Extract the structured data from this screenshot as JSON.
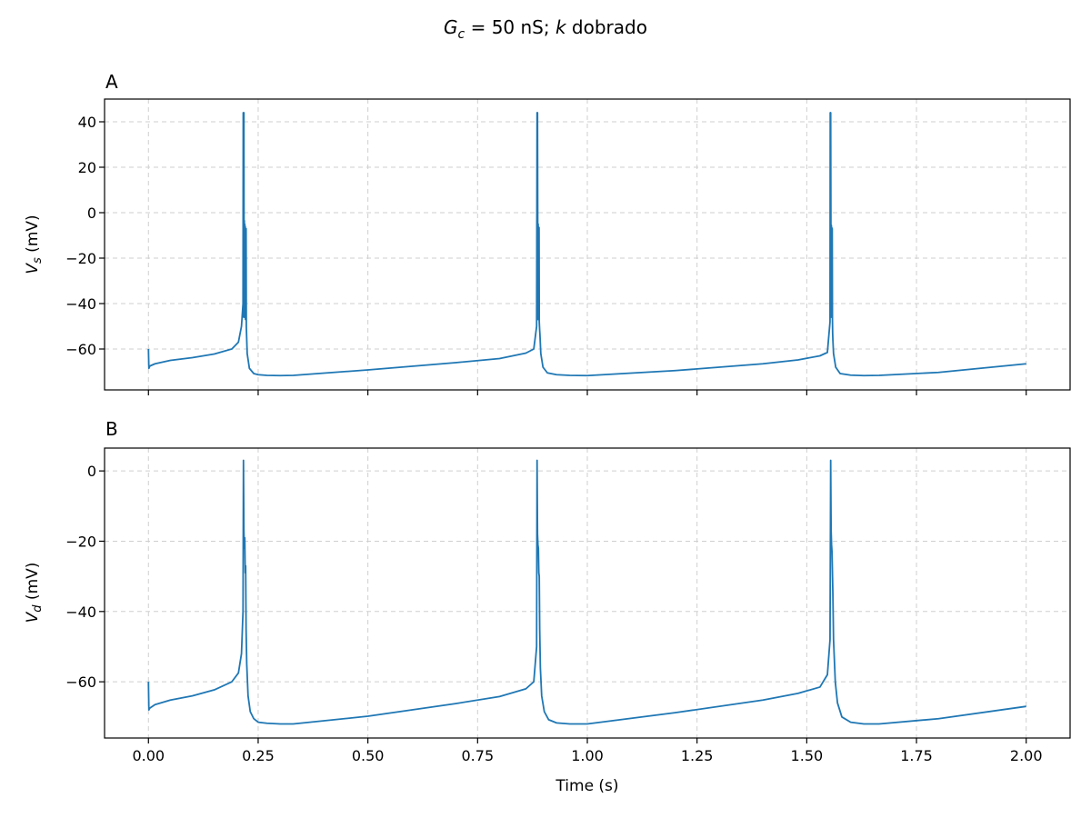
{
  "figure": {
    "suptitle_parts": {
      "g": "G",
      "sub_c": "c",
      "rest": " = 50 nS; ",
      "k": "k",
      "end": " dobrado"
    }
  },
  "chart_data": [
    {
      "type": "line",
      "panel_label": "A",
      "xlabel": "",
      "ylabel_symbol": "V",
      "ylabel_sub": "s",
      "ylabel_unit": " (mV)",
      "xlim": [
        -0.1,
        2.1
      ],
      "ylim": [
        -78,
        50
      ],
      "yticks": [
        40,
        20,
        0,
        -20,
        -40,
        -60
      ],
      "ytick_labels": [
        "40",
        "20",
        "0",
        "−20",
        "−40",
        "−60"
      ],
      "xticks": [
        0.0,
        0.25,
        0.5,
        0.75,
        1.0,
        1.25,
        1.5,
        1.75,
        2.0
      ],
      "grid": true,
      "series": [
        {
          "color": "#1f77b4",
          "x": [
            0.0,
            0.001,
            0.003,
            0.015,
            0.05,
            0.1,
            0.15,
            0.19,
            0.205,
            0.212,
            0.2155,
            0.216,
            0.217,
            0.2175,
            0.218,
            0.2185,
            0.219,
            0.2195,
            0.22,
            0.2205,
            0.221,
            0.2215,
            0.222,
            0.2225,
            0.223,
            0.225,
            0.23,
            0.24,
            0.25,
            0.27,
            0.3,
            0.33,
            0.5,
            0.7,
            0.8,
            0.86,
            0.878,
            0.8845,
            0.8855,
            0.886,
            0.8865,
            0.887,
            0.8875,
            0.888,
            0.8885,
            0.889,
            0.8895,
            0.89,
            0.8905,
            0.891,
            0.8915,
            0.892,
            0.894,
            0.899,
            0.909,
            0.93,
            0.96,
            1.0,
            1.2,
            1.4,
            1.48,
            1.53,
            1.547,
            1.553,
            1.5535,
            1.554,
            1.5545,
            1.555,
            1.5555,
            1.556,
            1.5565,
            1.557,
            1.5575,
            1.558,
            1.5585,
            1.559,
            1.5595,
            1.561,
            1.566,
            1.576,
            1.6,
            1.63,
            1.665,
            1.8,
            2.0
          ],
          "y": [
            -60,
            -68.5,
            -67.5,
            -66.5,
            -65.0,
            -63.8,
            -62.2,
            -60.0,
            -57.0,
            -50.0,
            -40.0,
            44.0,
            -46.0,
            44.0,
            -44.0,
            -3.5,
            -46.0,
            -5.0,
            -44.0,
            -6.0,
            -47.0,
            -7.5,
            -43.0,
            -7.0,
            -50.0,
            -62.0,
            -68.5,
            -70.8,
            -71.3,
            -71.6,
            -71.7,
            -71.6,
            -69.2,
            -66.0,
            -64.2,
            -61.8,
            -60.0,
            -50.0,
            44.0,
            -46.0,
            44.0,
            -3.8,
            -47.0,
            -5.0,
            -44.0,
            -6.5,
            -43.0,
            -6.5,
            -48.0,
            -50.0,
            -52.0,
            -53.5,
            -62.0,
            -68.0,
            -70.5,
            -71.3,
            -71.6,
            -71.7,
            -69.5,
            -66.5,
            -64.8,
            -63.0,
            -61.5,
            -48.0,
            44.0,
            -46.0,
            44.0,
            -4.0,
            -46.0,
            -5.5,
            -44.0,
            -6.5,
            -43.0,
            -7.0,
            -47.0,
            -53.0,
            -56.0,
            -62.0,
            -68.0,
            -70.8,
            -71.5,
            -71.7,
            -71.6,
            -70.3,
            -66.5
          ]
        }
      ]
    },
    {
      "type": "line",
      "panel_label": "B",
      "xlabel": "Time (s)",
      "ylabel_symbol": "V",
      "ylabel_sub": "d",
      "ylabel_unit": " (mV)",
      "xlim": [
        -0.1,
        2.1
      ],
      "ylim": [
        -76,
        6.5
      ],
      "yticks": [
        0,
        -20,
        -40,
        -60
      ],
      "ytick_labels": [
        "0",
        "−20",
        "−40",
        "−60"
      ],
      "xticks": [
        0.0,
        0.25,
        0.5,
        0.75,
        1.0,
        1.25,
        1.5,
        1.75,
        2.0
      ],
      "xtick_labels": [
        "0.00",
        "0.25",
        "0.50",
        "0.75",
        "1.00",
        "1.25",
        "1.50",
        "1.75",
        "2.00"
      ],
      "grid": true,
      "series": [
        {
          "color": "#1f77b4",
          "x": [
            0.0,
            0.001,
            0.003,
            0.015,
            0.05,
            0.1,
            0.15,
            0.19,
            0.205,
            0.212,
            0.2155,
            0.2165,
            0.2175,
            0.2185,
            0.2195,
            0.2205,
            0.2215,
            0.2225,
            0.224,
            0.227,
            0.232,
            0.24,
            0.25,
            0.27,
            0.3,
            0.33,
            0.5,
            0.7,
            0.8,
            0.86,
            0.878,
            0.8845,
            0.8855,
            0.8865,
            0.8875,
            0.8885,
            0.8895,
            0.8905,
            0.8915,
            0.893,
            0.896,
            0.902,
            0.912,
            0.93,
            0.96,
            1.0,
            1.2,
            1.4,
            1.48,
            1.53,
            1.547,
            1.553,
            1.5545,
            1.5555,
            1.5565,
            1.5575,
            1.5585,
            1.5595,
            1.561,
            1.565,
            1.57,
            1.58,
            1.6,
            1.63,
            1.665,
            1.8,
            2.0
          ],
          "y": [
            -60,
            -68.0,
            -67.5,
            -66.5,
            -65.2,
            -64.0,
            -62.3,
            -60.0,
            -57.5,
            -52.0,
            -40.0,
            3.0,
            -17.0,
            -22.0,
            -19.0,
            -29.0,
            -27.0,
            -45.0,
            -55.0,
            -64.0,
            -68.5,
            -70.5,
            -71.5,
            -71.8,
            -72.0,
            -72.0,
            -69.8,
            -66.2,
            -64.2,
            -62.0,
            -60.0,
            -50.0,
            3.0,
            -18.0,
            -21.0,
            -22.0,
            -29.0,
            -30.0,
            -45.0,
            -56.0,
            -64.0,
            -68.5,
            -70.8,
            -71.7,
            -72.0,
            -72.0,
            -68.8,
            -65.2,
            -63.3,
            -61.5,
            -58.0,
            -48.0,
            3.0,
            -17.0,
            -21.0,
            -23.0,
            -29.0,
            -35.0,
            -48.0,
            -60.0,
            -66.0,
            -70.0,
            -71.5,
            -72.0,
            -72.0,
            -70.5,
            -67.0
          ]
        }
      ]
    }
  ]
}
